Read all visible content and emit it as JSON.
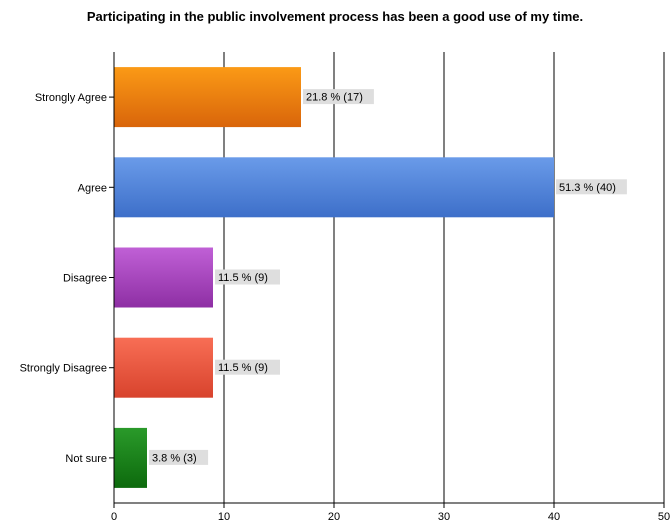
{
  "chart_data": {
    "type": "bar",
    "orientation": "horizontal",
    "title": "Participating in the public involvement process has been a good use of my time.",
    "categories": [
      "Strongly Agree",
      "Agree",
      "Disagree",
      "Strongly Disagree",
      "Not sure"
    ],
    "values": [
      17,
      40,
      9,
      9,
      3
    ],
    "data_labels": [
      "21.8 % (17)",
      "51.3 % (40)",
      "11.5 % (9)",
      "11.5 % (9)",
      "3.8 % (3)"
    ],
    "xlim": [
      0,
      50
    ],
    "x_ticks": [
      "0",
      "10",
      "20",
      "30",
      "40",
      "50"
    ],
    "grid": "vertical",
    "legend": "none",
    "colors": [
      {
        "top": "#fb9a16",
        "bottom": "#d9650a"
      },
      {
        "top": "#6a9be9",
        "bottom": "#3d6fc9"
      },
      {
        "top": "#c060d6",
        "bottom": "#8e2fa4"
      },
      {
        "top": "#f86e55",
        "bottom": "#d8432d"
      },
      {
        "top": "#2a9a2a",
        "bottom": "#0d6a0d"
      }
    ]
  }
}
